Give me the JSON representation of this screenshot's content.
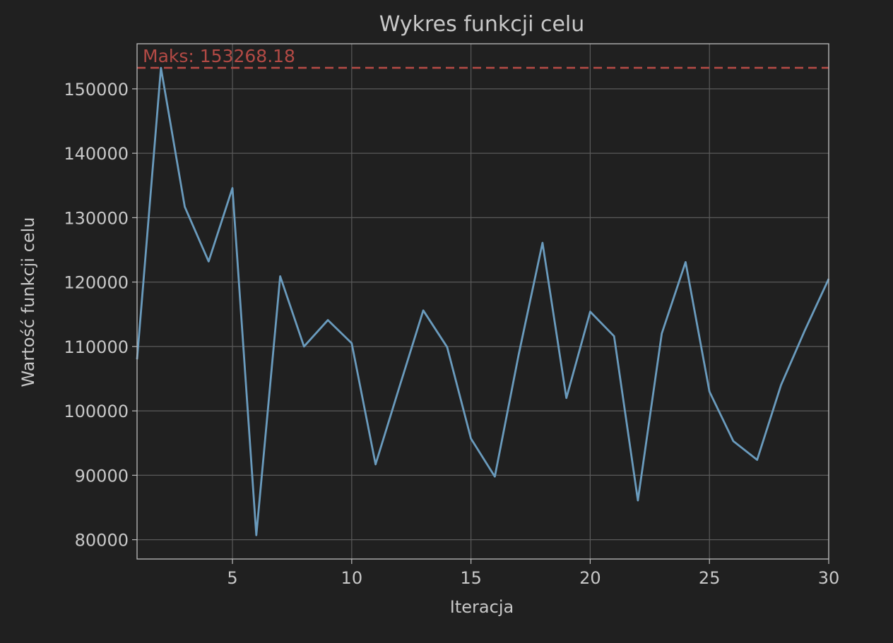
{
  "chart_data": {
    "type": "line",
    "title": "Wykres funkcji celu",
    "xlabel": "Iteracja",
    "ylabel": "Wartość funkcji celu",
    "xlim": [
      1,
      30
    ],
    "ylim": [
      77000,
      157000
    ],
    "xticks": [
      5,
      10,
      15,
      20,
      25,
      30
    ],
    "yticks": [
      80000,
      90000,
      100000,
      110000,
      120000,
      130000,
      140000,
      150000
    ],
    "grid": true,
    "series": [
      {
        "color": "#6a9bbd",
        "x": [
          1,
          2,
          3,
          4,
          5,
          6,
          7,
          8,
          9,
          10,
          11,
          12,
          13,
          14,
          15,
          16,
          17,
          18,
          19,
          20,
          21,
          22,
          23,
          24,
          25,
          26,
          27,
          28,
          29,
          30
        ],
        "values": [
          108000,
          153268,
          131700,
          123200,
          134600,
          80700,
          120900,
          110000,
          114100,
          110500,
          91700,
          103700,
          115600,
          109900,
          95700,
          89800,
          108700,
          126100,
          102000,
          115400,
          111600,
          86100,
          112000,
          123100,
          103000,
          95300,
          92400,
          104000,
          112500,
          120500
        ]
      }
    ],
    "reference_line": {
      "value": 153268.18,
      "label": "Maks: 153268.18",
      "style": "dashed",
      "color": "#b34a45"
    },
    "colors": {
      "background": "#202020",
      "axes_face": "#202020",
      "axes_edge": "#bdbdbd",
      "grid": "#5a5a5a",
      "text": "#c8c8c8"
    }
  }
}
